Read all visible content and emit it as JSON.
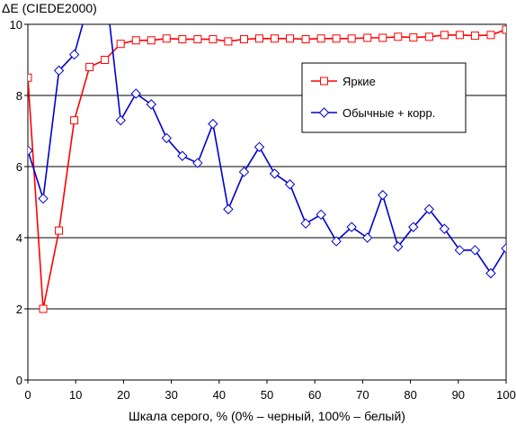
{
  "chart_data": {
    "type": "line",
    "title": "",
    "ylabel": "ΔE (CIEDE2000)",
    "xlabel": "Шкала серого, % (0% – черный, 100% – белый)",
    "xlim": [
      0,
      100
    ],
    "ylim": [
      0,
      10
    ],
    "xticks": [
      0,
      10,
      20,
      30,
      40,
      50,
      60,
      70,
      80,
      90,
      100
    ],
    "yticks": [
      0,
      2,
      4,
      6,
      8,
      10
    ],
    "grid": "horizontal",
    "legend_position": "top-right",
    "series": [
      {
        "name": "Яркие",
        "color": "#ff0000",
        "marker": "square",
        "x": [
          0,
          3.2,
          6.5,
          9.7,
          12.9,
          16.1,
          19.4,
          22.6,
          25.8,
          29.0,
          32.3,
          35.5,
          38.7,
          41.9,
          45.2,
          48.4,
          51.6,
          54.8,
          58.1,
          61.3,
          64.5,
          67.7,
          71.0,
          74.2,
          77.4,
          80.6,
          83.9,
          87.1,
          90.3,
          93.5,
          96.8,
          100
        ],
        "y": [
          8.5,
          2.0,
          4.2,
          7.3,
          8.8,
          9.0,
          9.45,
          9.55,
          9.55,
          9.6,
          9.58,
          9.58,
          9.58,
          9.52,
          9.58,
          9.6,
          9.6,
          9.6,
          9.58,
          9.6,
          9.6,
          9.6,
          9.62,
          9.62,
          9.65,
          9.63,
          9.65,
          9.7,
          9.7,
          9.68,
          9.7,
          9.85
        ]
      },
      {
        "name": "Обычные + корр.",
        "color": "#0000cc",
        "marker": "diamond",
        "x": [
          0,
          3.2,
          6.5,
          9.7,
          12.9,
          16.1,
          19.4,
          22.6,
          25.8,
          29.0,
          32.3,
          35.5,
          38.7,
          41.9,
          45.2,
          48.4,
          51.6,
          54.8,
          58.1,
          61.3,
          64.5,
          67.7,
          71.0,
          74.2,
          77.4,
          80.6,
          83.9,
          87.1,
          90.3,
          93.5,
          96.8,
          100
        ],
        "y": [
          6.45,
          5.1,
          8.7,
          9.15,
          10.7,
          11.2,
          7.3,
          8.05,
          7.75,
          6.8,
          6.3,
          6.1,
          7.2,
          4.8,
          5.85,
          6.55,
          5.8,
          5.5,
          4.4,
          4.65,
          3.9,
          4.3,
          4.0,
          5.2,
          3.75,
          4.3,
          4.8,
          4.25,
          3.65,
          3.65,
          3.0,
          3.7
        ]
      }
    ]
  }
}
